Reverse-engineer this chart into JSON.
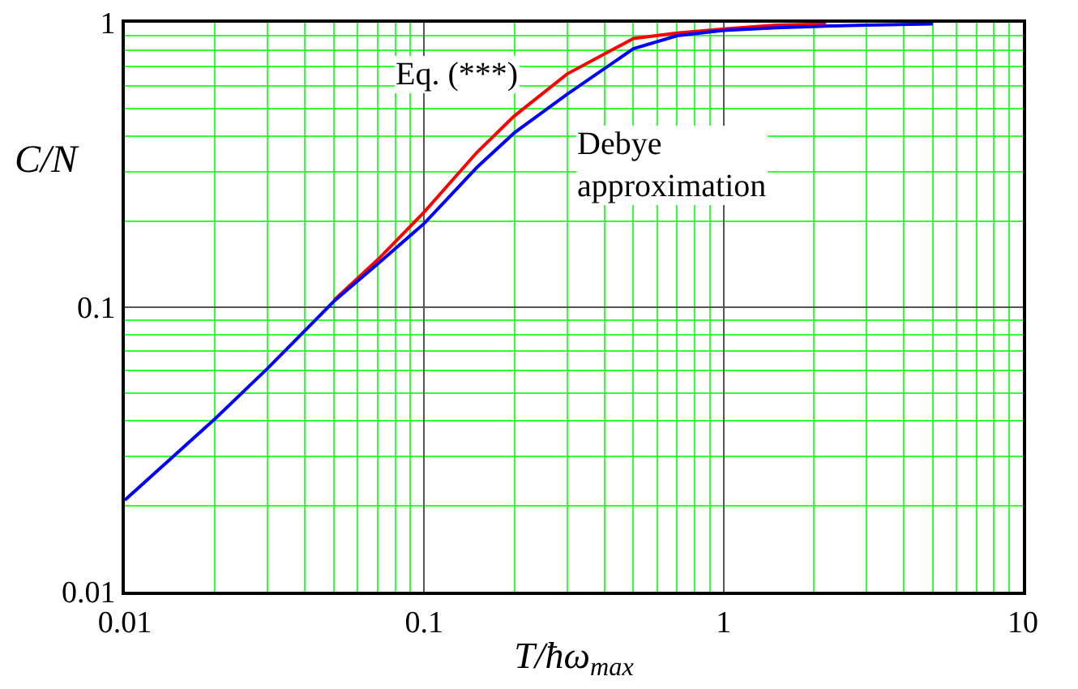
{
  "chart_data": {
    "type": "line",
    "xlabel": "T/ħω$_{max}$",
    "ylabel": "C/N",
    "log": "xy",
    "grid": true,
    "marker": "none",
    "line_style": "solid",
    "xlim": [
      0.01,
      10
    ],
    "ylim": [
      0.01,
      1
    ],
    "xticks": [
      0.01,
      {
        "value": 0.02,
        "label": null
      },
      {
        "value": 0.03,
        "label": null
      },
      {
        "value": 0.04,
        "label": null
      },
      {
        "value": 0.05,
        "label": null
      },
      {
        "value": 0.06,
        "label": null
      },
      {
        "value": 0.07,
        "label": null
      },
      {
        "value": 0.08,
        "label": null
      },
      {
        "value": 0.09,
        "label": null
      },
      0.1,
      {
        "value": 0.2,
        "label": null
      },
      {
        "value": 0.3,
        "label": null
      },
      {
        "value": 0.4,
        "label": null
      },
      {
        "value": 0.5,
        "label": null
      },
      {
        "value": 0.6,
        "label": null
      },
      {
        "value": 0.7,
        "label": null
      },
      {
        "value": 0.8,
        "label": null
      },
      {
        "value": 0.9,
        "label": null
      },
      1,
      {
        "value": 2,
        "label": null
      },
      {
        "value": 3,
        "label": null
      },
      {
        "value": 4,
        "label": null
      },
      {
        "value": 5,
        "label": null
      },
      {
        "value": 6,
        "label": null
      },
      {
        "value": 7,
        "label": null
      },
      {
        "value": 8,
        "label": null
      },
      {
        "value": 9,
        "label": null
      },
      10
    ],
    "yticks": [
      0.01,
      {
        "value": 0.02,
        "label": null
      },
      {
        "value": 0.03,
        "label": null
      },
      {
        "value": 0.04,
        "label": null
      },
      {
        "value": 0.05,
        "label": null
      },
      {
        "value": 0.06,
        "label": null
      },
      {
        "value": 0.07,
        "label": null
      },
      {
        "value": 0.08,
        "label": null
      },
      {
        "value": 0.09,
        "label": null
      },
      0.1,
      {
        "value": 0.2,
        "label": null
      },
      {
        "value": 0.3,
        "label": null
      },
      {
        "value": 0.4,
        "label": null
      },
      {
        "value": 0.5,
        "label": null
      },
      {
        "value": 0.6,
        "label": null
      },
      {
        "value": 0.7,
        "label": null
      },
      {
        "value": 0.8,
        "label": null
      },
      {
        "value": 0.9,
        "label": null
      },
      1
    ],
    "series": [
      {
        "color": "#ff0000",
        "x": [
          0.05,
          0.07,
          0.1,
          0.15,
          0.2,
          0.3,
          0.5,
          0.7,
          1,
          1.5,
          2.2
        ],
        "values": [
          0.106,
          0.147,
          0.216,
          0.35,
          0.47,
          0.66,
          0.88,
          0.92,
          0.95,
          0.98,
          0.99
        ]
      },
      {
        "color": "#0000ff",
        "x": [
          0.01,
          0.02,
          0.03,
          0.05,
          0.07,
          0.1,
          0.15,
          0.2,
          0.3,
          0.5,
          0.7,
          1,
          1.5,
          2,
          3,
          5
        ],
        "values": [
          0.021,
          0.0405,
          0.061,
          0.105,
          0.142,
          0.197,
          0.31,
          0.41,
          0.56,
          0.81,
          0.9,
          0.94,
          0.96,
          0.97,
          0.98,
          0.99
        ]
      }
    ],
    "annotations": [
      "Eq. (***)",
      "Debye\napproximation"
    ]
  }
}
